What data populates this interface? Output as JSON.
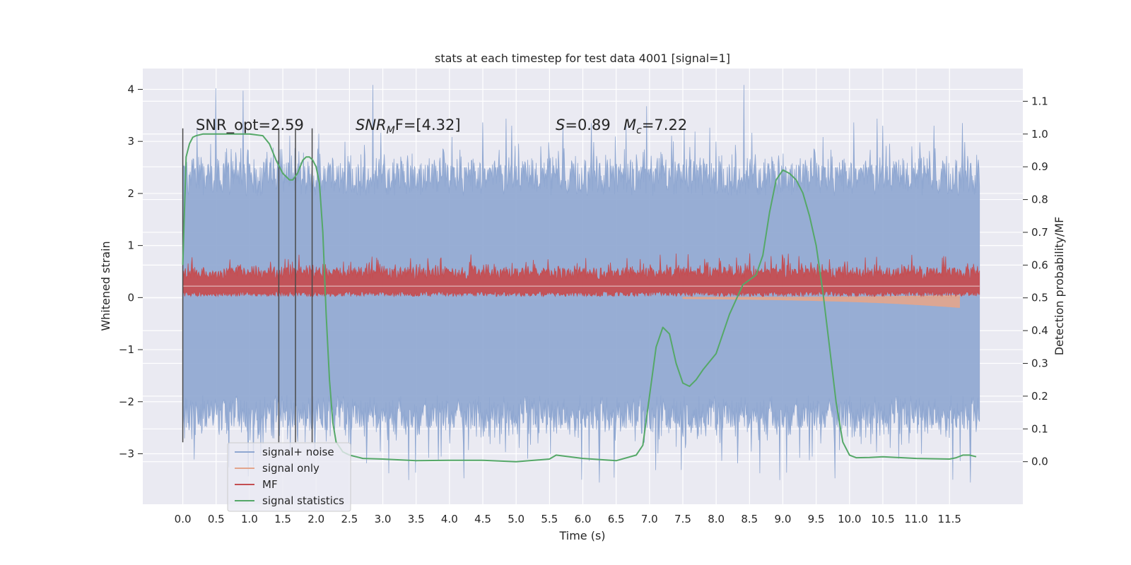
{
  "chart_data": {
    "type": "line",
    "title": "stats at each timestep for test data 4001 [signal=1]",
    "xlabel": "Time (s)",
    "ylabel": "Whitened strain",
    "ylabel_right": "Detection probability/MF",
    "xlim": [
      -0.6,
      12.6
    ],
    "ylim": [
      -3.97,
      4.4
    ],
    "ylim_right": [
      -0.13,
      1.2
    ],
    "x_ticks": [
      "0.0",
      "0.5",
      "1.0",
      "1.5",
      "2.0",
      "2.5",
      "3.0",
      "3.5",
      "4.0",
      "4.5",
      "5.0",
      "5.5",
      "6.0",
      "6.5",
      "7.0",
      "7.5",
      "8.0",
      "8.5",
      "9.0",
      "9.5",
      "10.0",
      "10.5",
      "11.0",
      "11.5"
    ],
    "y_ticks_left": [
      "4",
      "3",
      "2",
      "1",
      "0",
      "−1",
      "−2",
      "−3"
    ],
    "y_ticks_left_values": [
      4,
      3,
      2,
      1,
      0,
      -1,
      -2,
      -3
    ],
    "y_ticks_right": [
      "1.1",
      "1.0",
      "0.9",
      "0.8",
      "0.7",
      "0.6",
      "0.5",
      "0.4",
      "0.3",
      "0.2",
      "0.1",
      "0.0"
    ],
    "y_ticks_right_values": [
      1.1,
      1.0,
      0.9,
      0.8,
      0.7,
      0.6,
      0.5,
      0.4,
      0.3,
      0.2,
      0.1,
      0.0
    ],
    "grid": true,
    "legend_position": "lower-left",
    "annotations": {
      "snr_opt": "SNR_opt=2.59",
      "snr_mf_name": "SNR",
      "snr_mf_sub": "M",
      "snr_mf_rest": "F=[4.32]",
      "s_name": "S",
      "s_value": "=0.89",
      "mc_name": "M",
      "mc_sub": "c",
      "mc_value": "=7.22"
    },
    "vertical_markers_x": [
      0.0,
      1.44,
      1.69,
      1.94
    ],
    "series": [
      {
        "name": "signal+ noise",
        "color": "#8fa7d1",
        "amplitude_band": [
          -2.5,
          2.6
        ],
        "extreme_range": [
          -3.6,
          4.1
        ]
      },
      {
        "name": "signal only",
        "color": "#e3a58c"
      },
      {
        "name": "MF",
        "color": "#c44e52",
        "range": [
          0.0,
          0.85
        ]
      },
      {
        "name": "signal statistics",
        "color": "#55a868",
        "axis": "right",
        "x": [
          0.0,
          0.05,
          0.1,
          0.15,
          0.2,
          0.3,
          0.5,
          0.8,
          1.0,
          1.2,
          1.3,
          1.4,
          1.5,
          1.6,
          1.65,
          1.72,
          1.8,
          1.85,
          1.9,
          1.95,
          2.0,
          2.05,
          2.1,
          2.15,
          2.2,
          2.25,
          2.3,
          2.4,
          2.5,
          2.7,
          3.0,
          3.5,
          4.0,
          4.5,
          5.0,
          5.5,
          5.6,
          6.0,
          6.5,
          6.8,
          6.9,
          7.0,
          7.1,
          7.2,
          7.3,
          7.4,
          7.5,
          7.6,
          7.7,
          7.8,
          8.0,
          8.2,
          8.4,
          8.6,
          8.7,
          8.8,
          8.9,
          9.0,
          9.1,
          9.2,
          9.3,
          9.4,
          9.5,
          9.6,
          9.7,
          9.8,
          9.9,
          10.0,
          10.1,
          10.3,
          10.5,
          11.0,
          11.5,
          11.6,
          11.7,
          11.8,
          11.9
        ],
        "y": [
          0.6,
          0.93,
          0.97,
          0.99,
          0.995,
          1.0,
          1.0,
          1.0,
          1.0,
          0.995,
          0.97,
          0.92,
          0.88,
          0.86,
          0.86,
          0.88,
          0.92,
          0.93,
          0.93,
          0.92,
          0.9,
          0.85,
          0.7,
          0.45,
          0.25,
          0.12,
          0.06,
          0.03,
          0.02,
          0.01,
          0.008,
          0.003,
          0.004,
          0.004,
          0.0,
          0.008,
          0.02,
          0.01,
          0.003,
          0.02,
          0.05,
          0.2,
          0.35,
          0.41,
          0.39,
          0.3,
          0.24,
          0.23,
          0.25,
          0.28,
          0.33,
          0.45,
          0.54,
          0.57,
          0.63,
          0.76,
          0.86,
          0.89,
          0.88,
          0.86,
          0.82,
          0.75,
          0.66,
          0.52,
          0.35,
          0.18,
          0.06,
          0.02,
          0.012,
          0.013,
          0.015,
          0.01,
          0.008,
          0.012,
          0.02,
          0.02,
          0.015
        ]
      }
    ]
  }
}
